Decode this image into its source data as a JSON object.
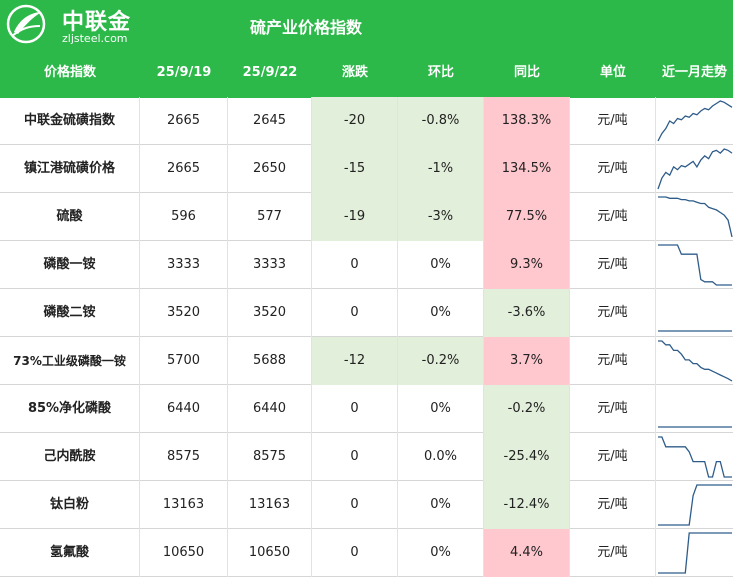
{
  "brand": {
    "name": "中联金",
    "url": "zljsteel.com",
    "color": "#2db84a"
  },
  "title": "硫产业价格指数",
  "columns": [
    "价格指数",
    "25/9/19",
    "25/9/22",
    "涨跌",
    "环比",
    "同比",
    "单位",
    "近一月走势"
  ],
  "colors": {
    "up": "#ffc7ce",
    "down": "#e2efda",
    "sparkline": "#2e5c8a"
  },
  "rows": [
    {
      "name": "中联金硫磺指数",
      "p1": "2665",
      "p2": "2645",
      "chg": "-20",
      "mom": "-0.8%",
      "yoy": "138.3%",
      "unit": "元/吨",
      "chg_bg": "neg",
      "mom_bg": "neg",
      "yoy_bg": "pos",
      "trend": [
        2510,
        2540,
        2560,
        2590,
        2580,
        2600,
        2595,
        2610,
        2605,
        2620,
        2615,
        2630,
        2640,
        2635,
        2650,
        2660,
        2670,
        2665,
        2655,
        2645
      ]
    },
    {
      "name": "镇江港硫磺价格",
      "p1": "2665",
      "p2": "2650",
      "chg": "-15",
      "mom": "-1%",
      "yoy": "134.5%",
      "unit": "元/吨",
      "chg_bg": "neg",
      "mom_bg": "neg",
      "yoy_bg": "pos",
      "trend": [
        2520,
        2560,
        2580,
        2570,
        2600,
        2590,
        2605,
        2600,
        2610,
        2620,
        2600,
        2625,
        2640,
        2630,
        2655,
        2660,
        2650,
        2665,
        2660,
        2650
      ]
    },
    {
      "name": "硫酸",
      "p1": "596",
      "p2": "577",
      "chg": "-19",
      "mom": "-3%",
      "yoy": "77.5%",
      "unit": "元/吨",
      "chg_bg": "neg",
      "mom_bg": "neg",
      "yoy_bg": "pos",
      "trend": [
        608,
        608,
        608,
        607,
        607,
        607,
        606,
        606,
        605,
        605,
        604,
        603,
        603,
        600,
        599,
        598,
        596,
        594,
        590,
        577
      ]
    },
    {
      "name": "磷酸一铵",
      "p1": "3333",
      "p2": "3333",
      "chg": "0",
      "mom": "0%",
      "yoy": "9.3%",
      "unit": "元/吨",
      "chg_bg": "",
      "mom_bg": "",
      "yoy_bg": "pos",
      "trend": [
        3420,
        3420,
        3420,
        3420,
        3420,
        3420,
        3400,
        3400,
        3400,
        3400,
        3400,
        3345,
        3340,
        3340,
        3340,
        3333,
        3333,
        3333,
        3333,
        3333
      ]
    },
    {
      "name": "磷酸二铵",
      "p1": "3520",
      "p2": "3520",
      "chg": "0",
      "mom": "0%",
      "yoy": "-3.6%",
      "unit": "元/吨",
      "chg_bg": "",
      "mom_bg": "",
      "yoy_bg": "neg",
      "trend": [
        3520,
        3520,
        3520,
        3520,
        3520,
        3520,
        3520,
        3520,
        3520,
        3520,
        3520,
        3520,
        3520,
        3520,
        3520,
        3520,
        3520,
        3520,
        3520,
        3520
      ]
    },
    {
      "name": "73%工业级磷酸一铵",
      "p1": "5700",
      "p2": "5688",
      "chg": "-12",
      "mom": "-0.2%",
      "yoy": "3.7%",
      "unit": "元/吨",
      "chg_bg": "neg",
      "mom_bg": "neg",
      "yoy_bg": "pos",
      "trend": [
        5900,
        5900,
        5880,
        5880,
        5850,
        5850,
        5830,
        5800,
        5800,
        5780,
        5780,
        5760,
        5750,
        5750,
        5740,
        5730,
        5720,
        5710,
        5700,
        5688
      ]
    },
    {
      "name": "85%净化磷酸",
      "p1": "6440",
      "p2": "6440",
      "chg": "0",
      "mom": "0%",
      "yoy": "-0.2%",
      "unit": "元/吨",
      "chg_bg": "",
      "mom_bg": "",
      "yoy_bg": "neg",
      "trend": [
        6440,
        6440,
        6440,
        6440,
        6440,
        6440,
        6440,
        6440,
        6440,
        6440,
        6440,
        6440,
        6440,
        6440,
        6440,
        6440,
        6440,
        6440,
        6440,
        6440
      ]
    },
    {
      "name": "己内酰胺",
      "p1": "8575",
      "p2": "8575",
      "chg": "0",
      "mom": "0.0%",
      "yoy": "-25.4%",
      "unit": "元/吨",
      "chg_bg": "",
      "mom_bg": "",
      "yoy_bg": "neg",
      "trend": [
        8900,
        8900,
        8820,
        8820,
        8820,
        8820,
        8820,
        8820,
        8780,
        8700,
        8700,
        8700,
        8700,
        8575,
        8575,
        8700,
        8700,
        8575,
        8575,
        8575
      ]
    },
    {
      "name": "钛白粉",
      "p1": "13163",
      "p2": "13163",
      "chg": "0",
      "mom": "0%",
      "yoy": "-12.4%",
      "unit": "元/吨",
      "chg_bg": "",
      "mom_bg": "",
      "yoy_bg": "neg",
      "trend": [
        13000,
        13000,
        13000,
        13000,
        13000,
        13000,
        13000,
        13000,
        13000,
        13120,
        13163,
        13163,
        13163,
        13163,
        13163,
        13163,
        13163,
        13163,
        13163,
        13163
      ]
    },
    {
      "name": "氢氟酸",
      "p1": "10650",
      "p2": "10650",
      "chg": "0",
      "mom": "0%",
      "yoy": "4.4%",
      "unit": "元/吨",
      "chg_bg": "",
      "mom_bg": "",
      "yoy_bg": "pos",
      "trend": [
        10400,
        10400,
        10400,
        10400,
        10400,
        10400,
        10400,
        10400,
        10650,
        10650,
        10650,
        10650,
        10650,
        10650,
        10650,
        10650,
        10650,
        10650,
        10650,
        10650
      ]
    }
  ]
}
